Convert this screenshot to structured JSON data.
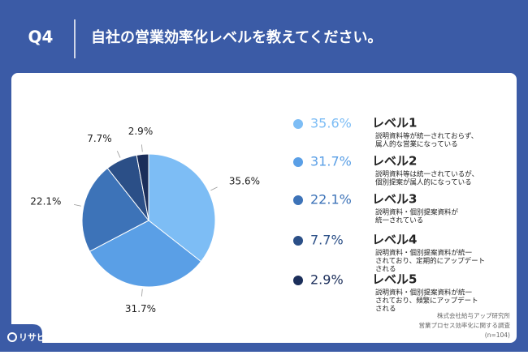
{
  "header_label": "Q4",
  "chart_data": {
    "type": "pie",
    "title": "自社の営業効率化レベルを教えてください。",
    "categories": [
      "レベル1",
      "レベル2",
      "レベル3",
      "レベル4",
      "レベル5"
    ],
    "descriptions": [
      [
        "説明資料等が統一されておらず、",
        "属人的な営業になっている"
      ],
      [
        "説明資料等は統一されているが、",
        "個別提案が属人的になっている"
      ],
      [
        "説明資料・個別提案資料が",
        "統一されている"
      ],
      [
        "説明資料・個別提案資料が統一",
        "されており、定期的にアップデート",
        "される"
      ],
      [
        "説明資料・個別提案資料が統一",
        "されており、頻繁にアップデート",
        "される"
      ]
    ],
    "values": [
      35.6,
      31.7,
      22.1,
      7.7,
      2.9
    ],
    "value_labels": [
      "35.6%",
      "31.7%",
      "22.1%",
      "7.7%",
      "2.9%"
    ],
    "colors": [
      "#7dbdf5",
      "#5a9fe6",
      "#3d73b8",
      "#2b4f87",
      "#1b2e5a"
    ]
  },
  "source": [
    "株式会社給与アップ研究所",
    "営業プロセス効率化に関する調査",
    "(n=104)"
  ],
  "logo": "リサピー"
}
